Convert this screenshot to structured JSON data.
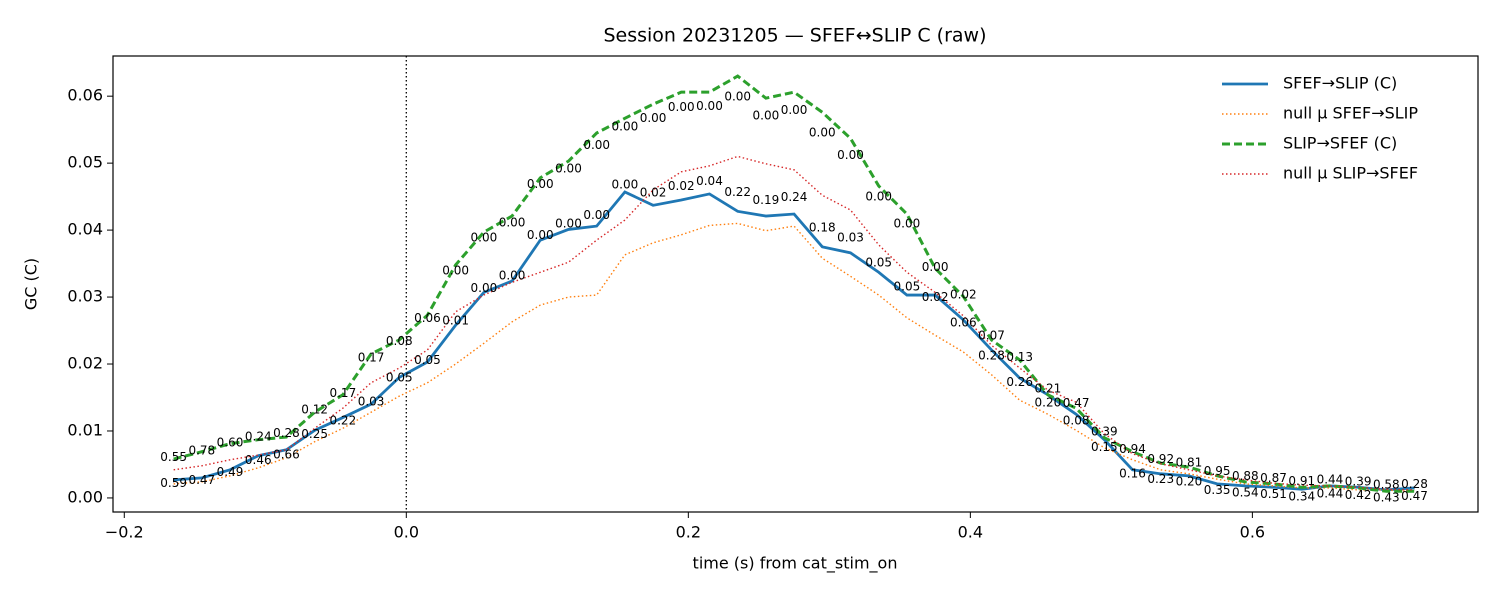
{
  "chart_data": {
    "type": "line",
    "title": "Session 20231205 — SFEF↔SLIP C (raw)",
    "xlabel": "time (s) from cat_stim_on",
    "ylabel": "GC (C)",
    "x": [
      -0.165,
      -0.145,
      -0.125,
      -0.105,
      -0.085,
      -0.065,
      -0.045,
      -0.025,
      -0.005,
      0.015,
      0.035,
      0.055,
      0.075,
      0.095,
      0.115,
      0.135,
      0.155,
      0.175,
      0.195,
      0.215,
      0.235,
      0.255,
      0.275,
      0.295,
      0.315,
      0.335,
      0.355,
      0.375,
      0.395,
      0.415,
      0.435,
      0.455,
      0.475,
      0.495,
      0.515,
      0.535,
      0.555,
      0.575,
      0.595,
      0.615,
      0.635,
      0.655,
      0.675,
      0.695,
      0.715
    ],
    "series": [
      {
        "name": "SFEF→SLIP (C)",
        "color": "#1f77b4",
        "style": "solid",
        "values": [
          0.0027,
          0.003,
          0.0042,
          0.0063,
          0.0072,
          0.0101,
          0.012,
          0.014,
          0.018,
          0.0203,
          0.0258,
          0.0307,
          0.0324,
          0.0385,
          0.0401,
          0.0406,
          0.0457,
          0.0437,
          0.0445,
          0.0454,
          0.0428,
          0.0421,
          0.0424,
          0.0375,
          0.0366,
          0.0337,
          0.0303,
          0.0303,
          0.0266,
          0.0221,
          0.0179,
          0.0154,
          0.0125,
          0.0087,
          0.0042,
          0.0036,
          0.0033,
          0.0021,
          0.0018,
          0.0016,
          0.0013,
          0.0018,
          0.0016,
          0.0012,
          0.0015
        ],
        "labels": [
          "0.59",
          "0.47",
          "0.49",
          "0.46",
          "0.66",
          "0.25",
          "0.22",
          "0.03",
          "0.05",
          "0.05",
          "0.01",
          "0.00",
          "0.00",
          "0.00",
          "0.00",
          "0.00",
          "0.00",
          "0.02",
          "0.02",
          "0.04",
          "0.22",
          "0.19",
          "0.24",
          "0.18",
          "0.03",
          "0.05",
          "0.05",
          "0.02",
          "0.06",
          "0.28",
          "0.26",
          "0.20",
          "0.08",
          "0.15",
          "0.16",
          "0.23",
          "0.20",
          "0.35",
          "0.54",
          "0.51",
          "0.34",
          "0.44",
          "0.42",
          "0.43",
          "0.47"
        ]
      },
      {
        "name": "null μ SFEF→SLIP",
        "color": "#ff7f0e",
        "style": "dotted",
        "values": [
          0.0021,
          0.0024,
          0.0033,
          0.0045,
          0.006,
          0.0084,
          0.0104,
          0.0128,
          0.0152,
          0.0172,
          0.02,
          0.0231,
          0.0263,
          0.0288,
          0.03,
          0.0303,
          0.0363,
          0.0381,
          0.0393,
          0.0407,
          0.041,
          0.0399,
          0.0406,
          0.0358,
          0.0331,
          0.0303,
          0.0269,
          0.0243,
          0.0218,
          0.0184,
          0.0146,
          0.0125,
          0.0101,
          0.0075,
          0.0057,
          0.0042,
          0.0036,
          0.0028,
          0.0021,
          0.0018,
          0.0015,
          0.0015,
          0.0012,
          0.0012,
          0.0009
        ]
      },
      {
        "name": "SLIP→SFEF (C)",
        "color": "#2ca02c",
        "style": "dashed",
        "values": [
          0.0058,
          0.0069,
          0.0081,
          0.0087,
          0.0091,
          0.0128,
          0.0154,
          0.0215,
          0.0236,
          0.0273,
          0.0348,
          0.0397,
          0.0421,
          0.0478,
          0.0503,
          0.0545,
          0.0567,
          0.0588,
          0.0606,
          0.0606,
          0.063,
          0.0597,
          0.0606,
          0.0576,
          0.0537,
          0.0466,
          0.0424,
          0.0343,
          0.0301,
          0.0236,
          0.0206,
          0.0154,
          0.0134,
          0.009,
          0.0069,
          0.0052,
          0.0046,
          0.0033,
          0.0024,
          0.0021,
          0.0016,
          0.0018,
          0.0015,
          0.001,
          0.001
        ],
        "labels": [
          "0.55",
          "0.78",
          "0.60",
          "0.24",
          "0.28",
          "0.12",
          "0.17",
          "0.17",
          "0.08",
          "0.06",
          "0.00",
          "0.00",
          "0.00",
          "0.00",
          "0.00",
          "0.00",
          "0.00",
          "0.00",
          "0.00",
          "0.00",
          "0.00",
          "0.00",
          "0.00",
          "0.00",
          "0.00",
          "0.00",
          "0.00",
          "0.00",
          "0.02",
          "0.07",
          "0.13",
          "0.21",
          "0.47",
          "0.39",
          "0.94",
          "0.92",
          "0.81",
          "0.95",
          "0.88",
          "0.87",
          "0.91",
          "0.44",
          "0.39",
          "0.58",
          "0.28"
        ]
      },
      {
        "name": "null μ SLIP→SFEF",
        "color": "#d62728",
        "style": "dotted",
        "values": [
          0.0042,
          0.0048,
          0.0057,
          0.0064,
          0.0072,
          0.0104,
          0.0134,
          0.0172,
          0.0194,
          0.0221,
          0.0278,
          0.0303,
          0.0322,
          0.0337,
          0.0352,
          0.0385,
          0.0415,
          0.046,
          0.0487,
          0.0496,
          0.051,
          0.0499,
          0.049,
          0.0452,
          0.043,
          0.0378,
          0.0337,
          0.0307,
          0.0272,
          0.0228,
          0.0194,
          0.0161,
          0.0143,
          0.0096,
          0.0066,
          0.0051,
          0.0042,
          0.0033,
          0.0027,
          0.0022,
          0.0019,
          0.0018,
          0.0016,
          0.0013,
          0.0012
        ]
      }
    ],
    "xlim": [
      -0.208,
      0.76
    ],
    "ylim": [
      -0.0021,
      0.066
    ],
    "xticks": [
      {
        "value": -0.2,
        "label": "−0.2"
      },
      {
        "value": 0,
        "label": "0.0"
      },
      0.2,
      0.4,
      0.6
    ],
    "yticks": [
      {
        "value": 0,
        "label": "0.00"
      },
      0.01,
      0.02,
      0.03,
      0.04,
      0.05,
      0.06
    ],
    "vline_x": 0,
    "legend": "upper right",
    "grid": false
  }
}
